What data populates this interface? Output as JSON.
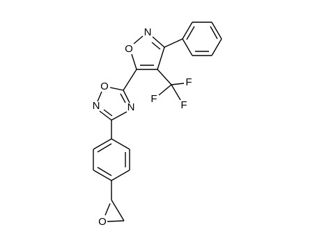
{
  "atoms": [
    "O",
    "N",
    "O",
    "N",
    "N",
    "F",
    "F",
    "F",
    "O"
  ]
}
